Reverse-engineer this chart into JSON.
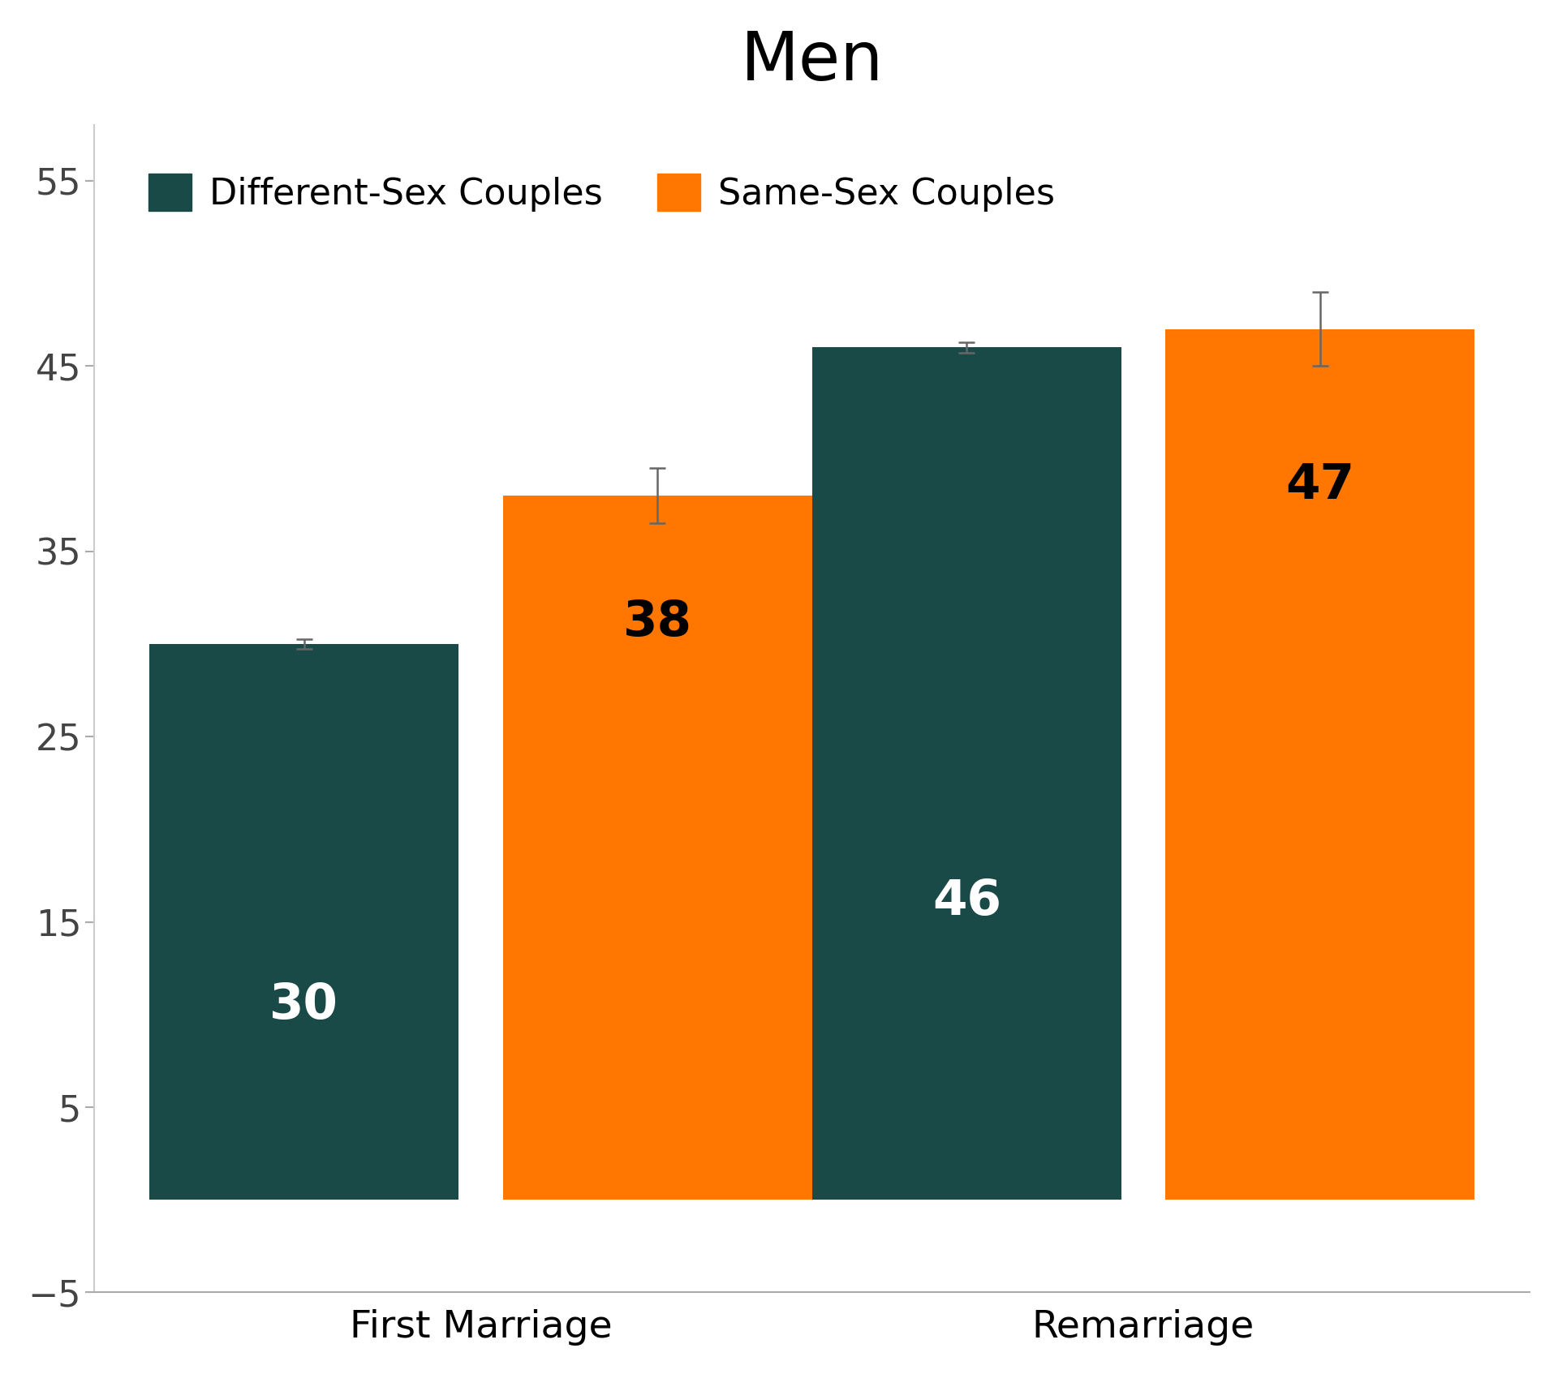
{
  "title": "Men",
  "categories": [
    "First Marriage",
    "Remarriage"
  ],
  "different_sex_values": [
    30,
    46
  ],
  "same_sex_values": [
    38,
    47
  ],
  "different_sex_errors": [
    0.25,
    0.3
  ],
  "same_sex_errors": [
    1.5,
    2.0
  ],
  "different_sex_color": "#1a4a47",
  "same_sex_color": "#ff7700",
  "bar_labels_different": [
    "30",
    "46"
  ],
  "bar_labels_same": [
    "38",
    "47"
  ],
  "bar_label_color_different": "#ffffff",
  "bar_label_color_same": "#000000",
  "label_different": "Different-Sex Couples",
  "label_same": "Same-Sex Couples",
  "ylim": [
    -5,
    58
  ],
  "yticks": [
    -5,
    5,
    15,
    25,
    35,
    45,
    55
  ],
  "background_color": "#ffffff",
  "title_fontsize": 60,
  "tick_fontsize": 32,
  "x_tick_fontsize": 34,
  "bar_label_fontsize": 44,
  "legend_fontsize": 32,
  "bar_width": 0.28,
  "x_positions": [
    0.3,
    0.9
  ],
  "bar_gap": 0.04
}
